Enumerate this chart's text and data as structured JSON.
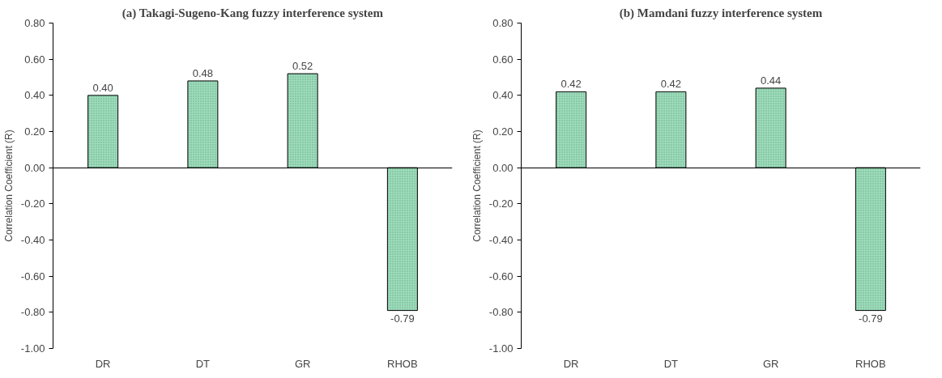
{
  "chart_data": [
    {
      "type": "bar",
      "title": "(a) Takagi-Sugeno-Kang fuzzy interference system",
      "ylabel": "Correlation Coefficient (R)",
      "categories": [
        "DR",
        "DT",
        "GR",
        "RHOB"
      ],
      "values": [
        0.4,
        0.48,
        0.52,
        -0.79
      ],
      "value_labels": [
        "0.40",
        "0.48",
        "0.52",
        "-0.79"
      ],
      "color": "#9fdcbc",
      "ylim": [
        -1.0,
        0.8
      ],
      "yticks": [
        {
          "value": 0.8,
          "label": "0.80"
        },
        {
          "value": 0.6,
          "label": "0.60"
        },
        {
          "value": 0.4,
          "label": "0.40"
        },
        {
          "value": 0.2,
          "label": "0.20"
        },
        {
          "value": 0,
          "label": "0.00"
        },
        {
          "value": -0.2,
          "label": "-0.20"
        },
        {
          "value": -0.4,
          "label": "-0.40"
        },
        {
          "value": -0.6,
          "label": "-0.60"
        },
        {
          "value": -0.8,
          "label": "-0.80"
        },
        {
          "value": -1.0,
          "label": "-1.00"
        }
      ]
    },
    {
      "type": "bar",
      "title": "(b) Mamdani fuzzy interference system",
      "ylabel": "Correlation Coefficient (R)",
      "categories": [
        "DR",
        "DT",
        "GR",
        "RHOB"
      ],
      "values": [
        0.42,
        0.42,
        0.44,
        -0.79
      ],
      "value_labels": [
        "0.42",
        "0.42",
        "0.44",
        "-0.79"
      ],
      "color": "#9fdcbc",
      "ylim": [
        -1.0,
        0.8
      ],
      "yticks": [
        {
          "value": 0.8,
          "label": "0.80"
        },
        {
          "value": 0.6,
          "label": "0.60"
        },
        {
          "value": 0.4,
          "label": "0.40"
        },
        {
          "value": 0.2,
          "label": "0.20"
        },
        {
          "value": 0,
          "label": "0.00"
        },
        {
          "value": -0.2,
          "label": "-0.20"
        },
        {
          "value": -0.4,
          "label": "-0.40"
        },
        {
          "value": -0.6,
          "label": "-0.60"
        },
        {
          "value": -0.8,
          "label": "-0.80"
        },
        {
          "value": -1.0,
          "label": "-1.00"
        }
      ]
    }
  ]
}
